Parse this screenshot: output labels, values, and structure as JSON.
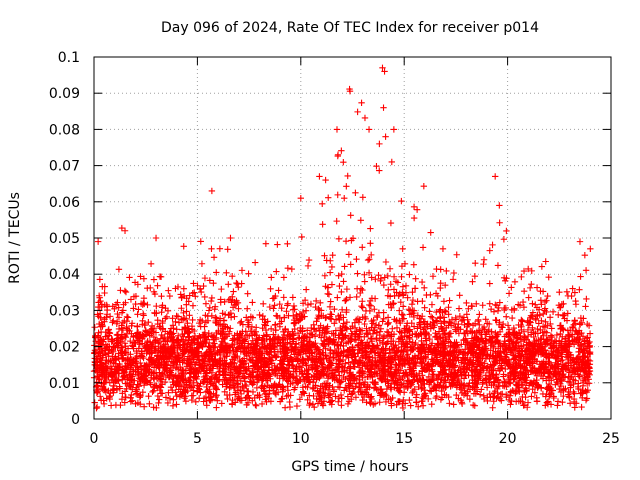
{
  "chart_data": {
    "type": "scatter",
    "title": "Day 096 of 2024, Rate Of TEC Index for receiver p014",
    "xlabel": "GPS time / hours",
    "ylabel": "ROTI / TECUs",
    "xlim": [
      0,
      25
    ],
    "ylim": [
      0,
      0.1
    ],
    "xticks": [
      0,
      5,
      10,
      15,
      20,
      25
    ],
    "xtick_labels": [
      "0",
      "5",
      "10",
      "15",
      "20",
      "25"
    ],
    "yticks": [
      0,
      0.01,
      0.02,
      0.03,
      0.04,
      0.05,
      0.06,
      0.07,
      0.08,
      0.09,
      0.1
    ],
    "ytick_labels": [
      "0",
      "0.01",
      "0.02",
      "0.03",
      "0.04",
      "0.05",
      "0.06",
      "0.07",
      "0.08",
      "0.09",
      "0.1"
    ],
    "grid": true,
    "marker": "+",
    "marker_color": "#ff0000",
    "x_data_range": [
      0,
      24
    ],
    "series": [
      {
        "name": "ROTI",
        "note": "Dense cloud of several thousand points; baseline ~0.008–0.025 TECU/s all day, enhanced activity 10–16 h",
        "notable_points": [
          {
            "x": 13.95,
            "y": 0.097
          },
          {
            "x": 14.05,
            "y": 0.096
          },
          {
            "x": 14.0,
            "y": 0.086
          },
          {
            "x": 11.75,
            "y": 0.08
          },
          {
            "x": 14.5,
            "y": 0.08
          },
          {
            "x": 13.3,
            "y": 0.08
          },
          {
            "x": 13.8,
            "y": 0.076
          },
          {
            "x": 14.1,
            "y": 0.078
          },
          {
            "x": 11.8,
            "y": 0.073
          },
          {
            "x": 14.4,
            "y": 0.071
          },
          {
            "x": 10.9,
            "y": 0.067
          },
          {
            "x": 19.4,
            "y": 0.067
          },
          {
            "x": 11.2,
            "y": 0.066
          },
          {
            "x": 5.7,
            "y": 0.063
          },
          {
            "x": 10.0,
            "y": 0.061
          },
          {
            "x": 12.1,
            "y": 0.061
          },
          {
            "x": 19.6,
            "y": 0.059
          },
          {
            "x": 1.5,
            "y": 0.052
          },
          {
            "x": 3.0,
            "y": 0.05
          },
          {
            "x": 6.6,
            "y": 0.05
          },
          {
            "x": 0.2,
            "y": 0.049
          },
          {
            "x": 23.5,
            "y": 0.049
          },
          {
            "x": 24.0,
            "y": 0.047
          },
          {
            "x": 0.12,
            "y": 0.003
          }
        ]
      }
    ]
  }
}
